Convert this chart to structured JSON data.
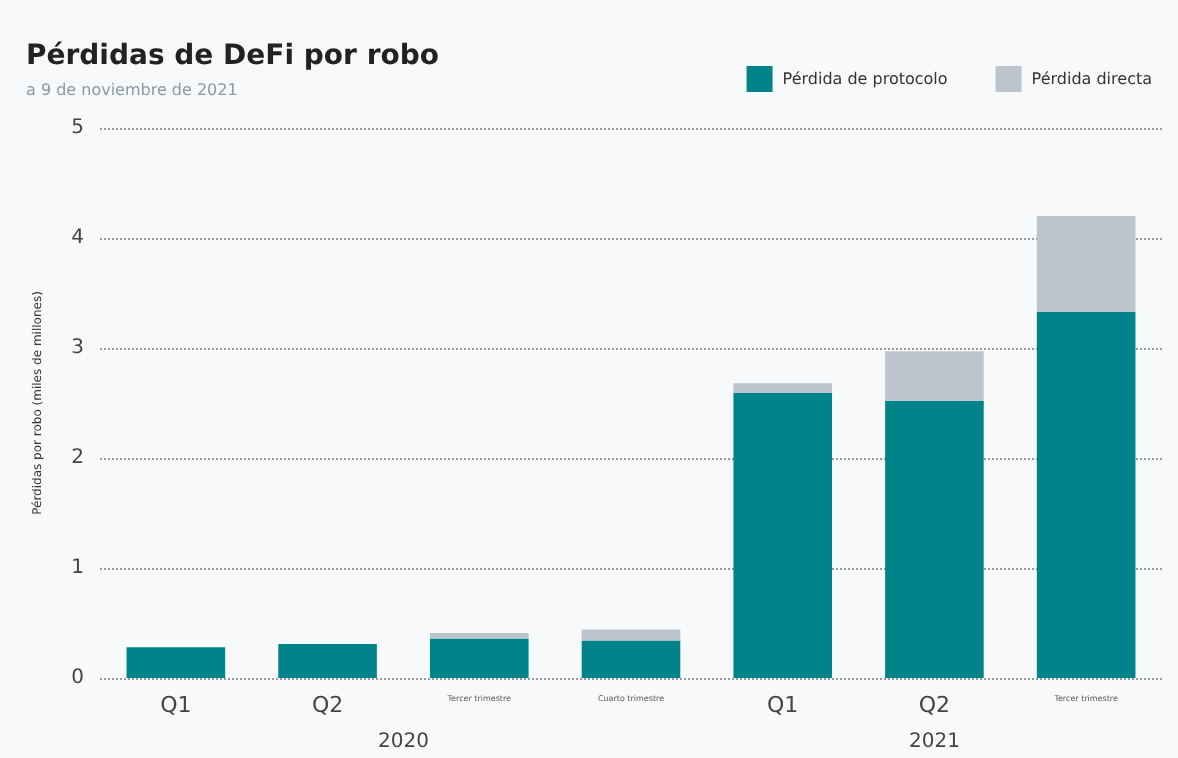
{
  "chart_data": {
    "type": "bar",
    "title": "Pérdidas de DeFi por robo",
    "subtitle": "a 9 de noviembre de 2021",
    "ylabel": "Pérdidas por robo (miles de millones)",
    "categories": [
      "Q1",
      "Q2",
      "Tercer trimestre",
      "Cuarto trimestre",
      "Q1",
      "Q2",
      "Tercer trimestre"
    ],
    "series": [
      {
        "name": "Pérdida de protocolo",
        "color": "#00838a",
        "values": [
          0.28,
          0.31,
          0.36,
          0.34,
          2.59,
          2.52,
          3.33
        ]
      },
      {
        "name": "Pérdida directa",
        "color": "#bcc5cd",
        "values": [
          0,
          0,
          0.05,
          0.1,
          0.09,
          0.45,
          0.87
        ]
      }
    ],
    "stacked": true,
    "ylim": [
      0,
      5
    ],
    "yticks": [
      0,
      1,
      2,
      3,
      4,
      5
    ],
    "grid": "y",
    "legend": "top right",
    "annotations": [
      "2020",
      "2021"
    ]
  }
}
